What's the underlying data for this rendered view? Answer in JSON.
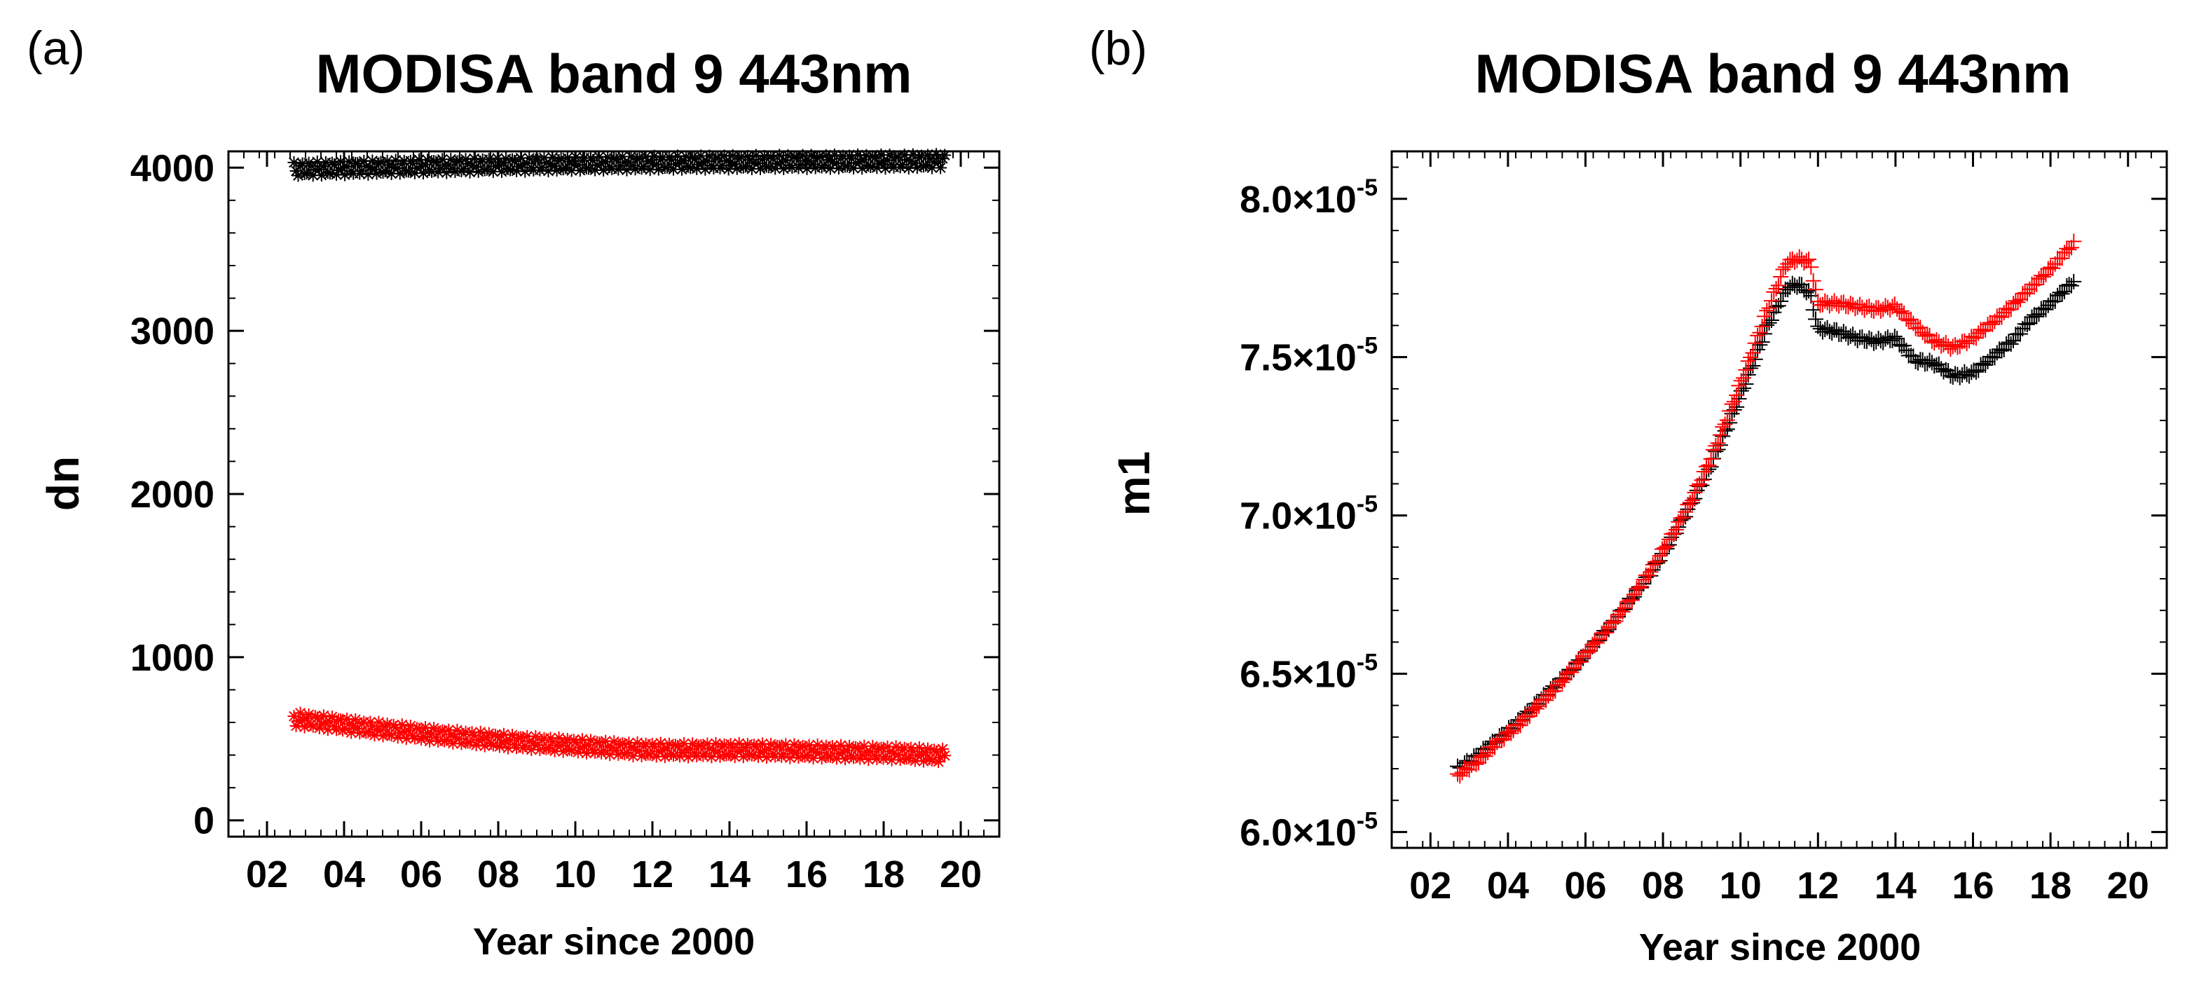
{
  "chart_data": [
    {
      "type": "scatter",
      "panel_label": "(a)",
      "title": "MODISA band 9 443nm",
      "xlabel": "Year since 2000",
      "ylabel": "dn",
      "xlim": [
        1,
        21
      ],
      "ylim": [
        -100,
        4100
      ],
      "xticks": [
        2,
        4,
        6,
        8,
        10,
        12,
        14,
        16,
        18,
        20
      ],
      "xtick_labels": [
        "02",
        "04",
        "06",
        "08",
        "10",
        "12",
        "14",
        "16",
        "18",
        "20"
      ],
      "yticks": [
        0,
        1000,
        2000,
        3000,
        4000
      ],
      "ytick_labels": [
        "0",
        "1000",
        "2000",
        "3000",
        "4000"
      ],
      "marker": "x-star",
      "series": [
        {
          "name": "black",
          "color": "#000000",
          "x": [
            2.7,
            3.5,
            4.5,
            5.5,
            6.5,
            7.5,
            8.5,
            9.5,
            10.5,
            11.5,
            12.5,
            13.5,
            14.5,
            15.5,
            16.5,
            17.5,
            18.5,
            19.6
          ],
          "y": [
            3990,
            3995,
            4000,
            4005,
            4010,
            4015,
            4018,
            4022,
            4025,
            4028,
            4030,
            4032,
            4033,
            4035,
            4036,
            4037,
            4038,
            4040
          ]
        },
        {
          "name": "red",
          "color": "#ff0000",
          "x": [
            2.7,
            3.5,
            4.5,
            5.5,
            6.5,
            7.5,
            8.5,
            9.5,
            10.5,
            11.5,
            12.5,
            13.5,
            14.5,
            15.5,
            16.5,
            17.5,
            18.5,
            19.6
          ],
          "y": [
            620,
            600,
            570,
            545,
            520,
            500,
            480,
            465,
            450,
            435,
            430,
            430,
            430,
            425,
            420,
            415,
            410,
            395
          ]
        }
      ]
    },
    {
      "type": "scatter",
      "panel_label": "(b)",
      "title": "MODISA band 9 443nm",
      "xlabel": "Year since 2000",
      "ylabel": "m1",
      "xlim": [
        1,
        21
      ],
      "ylim": [
        5.95e-05,
        8.15e-05
      ],
      "xticks": [
        2,
        4,
        6,
        8,
        10,
        12,
        14,
        16,
        18,
        20
      ],
      "xtick_labels": [
        "02",
        "04",
        "06",
        "08",
        "10",
        "12",
        "14",
        "16",
        "18",
        "20"
      ],
      "yticks": [
        6e-05,
        6.5e-05,
        7e-05,
        7.5e-05,
        8e-05
      ],
      "ytick_mantissas": [
        "6.0",
        "6.5",
        "7.0",
        "7.5",
        "8.0"
      ],
      "ytick_mult": "×10",
      "ytick_exponent": "-5",
      "marker": "plus",
      "series": [
        {
          "name": "black",
          "color": "#000000",
          "x": [
            2.7,
            3.2,
            3.7,
            4.2,
            4.7,
            5.2,
            5.7,
            6.2,
            6.7,
            7.2,
            7.7,
            8.2,
            8.7,
            9.2,
            9.7,
            10.2,
            10.7,
            11.2,
            11.5,
            11.8,
            12.0,
            12.5,
            13.0,
            13.5,
            14.0,
            14.5,
            15.0,
            15.5,
            16.0,
            16.5,
            17.0,
            17.5,
            18.0,
            18.6
          ],
          "y": [
            6.2e-05,
            6.24e-05,
            6.29e-05,
            6.34e-05,
            6.4e-05,
            6.46e-05,
            6.52e-05,
            6.59e-05,
            6.66e-05,
            6.74e-05,
            6.82e-05,
            6.92e-05,
            7.03e-05,
            7.15e-05,
            7.29e-05,
            7.44e-05,
            7.6e-05,
            7.72e-05,
            7.73e-05,
            7.7e-05,
            7.59e-05,
            7.58e-05,
            7.56e-05,
            7.55e-05,
            7.56e-05,
            7.49e-05,
            7.48e-05,
            7.44e-05,
            7.45e-05,
            7.5e-05,
            7.55e-05,
            7.62e-05,
            7.67e-05,
            7.74e-05
          ]
        },
        {
          "name": "red",
          "color": "#ff0000",
          "x": [
            2.7,
            3.2,
            3.7,
            4.2,
            4.7,
            5.2,
            5.7,
            6.2,
            6.7,
            7.2,
            7.7,
            8.2,
            8.7,
            9.2,
            9.7,
            10.2,
            10.7,
            11.2,
            11.5,
            11.8,
            12.0,
            12.5,
            13.0,
            13.5,
            14.0,
            14.5,
            15.0,
            15.5,
            16.0,
            16.5,
            17.0,
            17.5,
            18.0,
            18.6
          ],
          "y": [
            6.18e-05,
            6.22e-05,
            6.28e-05,
            6.33e-05,
            6.39e-05,
            6.45e-05,
            6.52e-05,
            6.59e-05,
            6.66e-05,
            6.74e-05,
            6.83e-05,
            6.93e-05,
            7.04e-05,
            7.17e-05,
            7.32e-05,
            7.48e-05,
            7.65e-05,
            7.8e-05,
            7.81e-05,
            7.8e-05,
            7.67e-05,
            7.67e-05,
            7.66e-05,
            7.65e-05,
            7.66e-05,
            7.6e-05,
            7.55e-05,
            7.53e-05,
            7.56e-05,
            7.61e-05,
            7.66e-05,
            7.72e-05,
            7.78e-05,
            7.86e-05
          ]
        }
      ]
    }
  ]
}
